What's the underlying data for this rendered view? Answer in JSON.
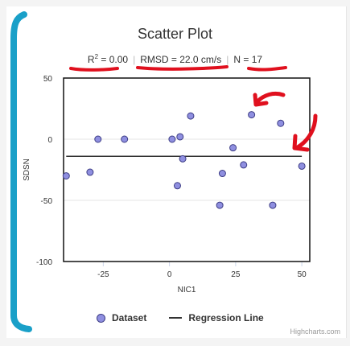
{
  "chart_data": {
    "type": "scatter",
    "title": "Scatter Plot",
    "subtitle": {
      "r2_label": "R",
      "r2_sup": "2",
      "r2_value": " = 0.00",
      "rmsd": "RMSD = 22.0 cm/s",
      "n": "N = 17",
      "separator": "|"
    },
    "xlabel": "NIC1",
    "ylabel": "SDSN",
    "xlim": [
      -40,
      53
    ],
    "ylim": [
      -100,
      50
    ],
    "x_ticks": [
      -25,
      0,
      25,
      50
    ],
    "y_ticks": [
      50,
      0,
      -50,
      -100
    ],
    "grid": true,
    "legend_placement": "bottom",
    "series": [
      {
        "name": "Dataset",
        "type": "scatter",
        "color": "#8f8fe0",
        "edge_color": "#3d3d85",
        "points": [
          {
            "x": -39,
            "y": -30
          },
          {
            "x": -30,
            "y": -27
          },
          {
            "x": -27,
            "y": 0
          },
          {
            "x": -17,
            "y": 0
          },
          {
            "x": 1,
            "y": 0
          },
          {
            "x": 4,
            "y": 2
          },
          {
            "x": 8,
            "y": 19
          },
          {
            "x": 5,
            "y": -16
          },
          {
            "x": 3,
            "y": -38
          },
          {
            "x": 20,
            "y": -28
          },
          {
            "x": 24,
            "y": -7
          },
          {
            "x": 28,
            "y": -21
          },
          {
            "x": 31,
            "y": 20
          },
          {
            "x": 19,
            "y": -54
          },
          {
            "x": 39,
            "y": -54
          },
          {
            "x": 42,
            "y": 13
          },
          {
            "x": 50,
            "y": -22
          }
        ]
      },
      {
        "name": "Regression Line",
        "type": "line",
        "color": "#333333",
        "points": [
          {
            "x": -39,
            "y": -14
          },
          {
            "x": 50,
            "y": -14
          }
        ]
      }
    ],
    "credits": "Highcharts.com"
  },
  "annotation_colors": {
    "marker": "#e0101e",
    "bracket": "#1aa0c8"
  }
}
